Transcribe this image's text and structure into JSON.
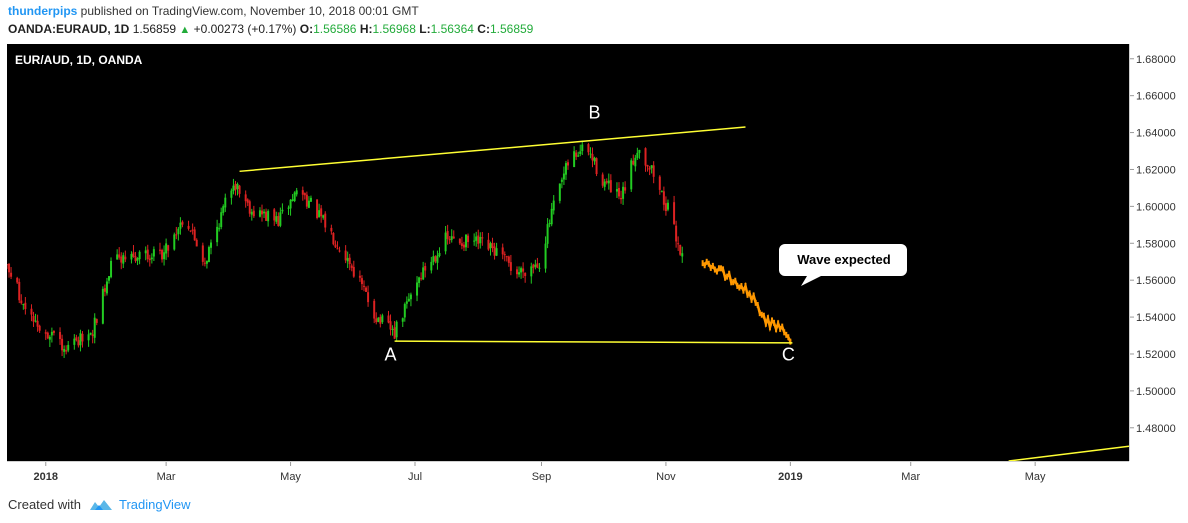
{
  "header": {
    "author": "thunderpips",
    "published": "published on TradingView.com, November 10, 2018 00:01 GMT",
    "symbol": "OANDA:EURAUD, 1D",
    "price": "1.56859",
    "change_arrow": "▲",
    "change": "+0.00273 (+0.17%)",
    "o_label": "O:",
    "o_value": "1.56586",
    "h_label": "H:",
    "h_value": "1.56968",
    "l_label": "L:",
    "l_value": "1.56364",
    "c_label": "C:",
    "c_value": "1.56859"
  },
  "footer": {
    "created_with": "Created with",
    "brand": "TradingView",
    "logo_icon": "tradingview-logo-icon"
  },
  "chart_data": {
    "type": "candlestick",
    "title": "EUR/AUD, 1D, OANDA",
    "background": "#000000",
    "colors": {
      "up": "#22cc22",
      "down": "#dd2222",
      "projection": "#ff9800",
      "trendline": "#ffff33",
      "axis_text": "#333333"
    },
    "y_axis": {
      "side": "right",
      "ylim": [
        1.462,
        1.688
      ],
      "ticks": [
        1.68,
        1.66,
        1.64,
        1.62,
        1.6,
        1.58,
        1.56,
        1.54,
        1.52,
        1.5,
        1.48
      ],
      "tick_labels": [
        "1.68000",
        "1.66000",
        "1.64000",
        "1.62000",
        "1.60000",
        "1.58000",
        "1.56000",
        "1.54000",
        "1.52000",
        "1.50000",
        "1.48000"
      ]
    },
    "x_axis": {
      "range": [
        "2017-12-13",
        "2019-06-16"
      ],
      "ticks": [
        {
          "date": "2018-01-01",
          "label": "2018",
          "bold": true
        },
        {
          "date": "2018-03-01",
          "label": "Mar"
        },
        {
          "date": "2018-05-01",
          "label": "May"
        },
        {
          "date": "2018-07-01",
          "label": "Jul"
        },
        {
          "date": "2018-09-01",
          "label": "Sep"
        },
        {
          "date": "2018-11-01",
          "label": "Nov"
        },
        {
          "date": "2019-01-01",
          "label": "2019",
          "bold": true
        },
        {
          "date": "2019-03-01",
          "label": "Mar"
        },
        {
          "date": "2019-05-01",
          "label": "May"
        }
      ]
    },
    "price_path": [
      {
        "date": "2017-12-13",
        "close": 1.568
      },
      {
        "date": "2017-12-22",
        "close": 1.545
      },
      {
        "date": "2018-01-02",
        "close": 1.53
      },
      {
        "date": "2018-01-12",
        "close": 1.524
      },
      {
        "date": "2018-01-24",
        "close": 1.532
      },
      {
        "date": "2018-02-02",
        "close": 1.57
      },
      {
        "date": "2018-02-15",
        "close": 1.572
      },
      {
        "date": "2018-02-28",
        "close": 1.575
      },
      {
        "date": "2018-03-10",
        "close": 1.595
      },
      {
        "date": "2018-03-20",
        "close": 1.57
      },
      {
        "date": "2018-04-03",
        "close": 1.614
      },
      {
        "date": "2018-04-12",
        "close": 1.598
      },
      {
        "date": "2018-04-25",
        "close": 1.592
      },
      {
        "date": "2018-05-05",
        "close": 1.61
      },
      {
        "date": "2018-05-18",
        "close": 1.59
      },
      {
        "date": "2018-05-30",
        "close": 1.57
      },
      {
        "date": "2018-06-12",
        "close": 1.54
      },
      {
        "date": "2018-06-21",
        "close": 1.531
      },
      {
        "date": "2018-07-02",
        "close": 1.56
      },
      {
        "date": "2018-07-16",
        "close": 1.582
      },
      {
        "date": "2018-08-01",
        "close": 1.58
      },
      {
        "date": "2018-08-10",
        "close": 1.575
      },
      {
        "date": "2018-08-20",
        "close": 1.564
      },
      {
        "date": "2018-08-31",
        "close": 1.57
      },
      {
        "date": "2018-09-07",
        "close": 1.6
      },
      {
        "date": "2018-09-15",
        "close": 1.626
      },
      {
        "date": "2018-09-23",
        "close": 1.632
      },
      {
        "date": "2018-10-01",
        "close": 1.614
      },
      {
        "date": "2018-10-10",
        "close": 1.603
      },
      {
        "date": "2018-10-18",
        "close": 1.632
      },
      {
        "date": "2018-10-25",
        "close": 1.62
      },
      {
        "date": "2018-11-02",
        "close": 1.598
      },
      {
        "date": "2018-11-10",
        "close": 1.569
      }
    ],
    "projection": {
      "label": "Wave expected",
      "path": [
        {
          "date": "2018-11-19",
          "close": 1.571
        },
        {
          "date": "2018-12-01",
          "close": 1.562
        },
        {
          "date": "2018-12-12",
          "close": 1.553
        },
        {
          "date": "2018-12-21",
          "close": 1.537
        },
        {
          "date": "2018-12-30",
          "close": 1.532
        },
        {
          "date": "2019-01-01",
          "close": 1.527
        }
      ]
    },
    "trendlines": [
      {
        "from": {
          "date": "2018-04-06",
          "price": 1.619
        },
        "to": {
          "date": "2018-12-10",
          "price": 1.643
        }
      },
      {
        "from": {
          "date": "2018-06-21",
          "price": 1.527
        },
        "to": {
          "date": "2019-01-02",
          "price": 1.526
        }
      },
      {
        "from": {
          "date": "2019-04-18",
          "price": 1.462
        },
        "to": {
          "date": "2019-06-16",
          "price": 1.47
        }
      }
    ],
    "wave_labels": [
      {
        "text": "A",
        "date": "2018-06-19",
        "price": 1.5165
      },
      {
        "text": "B",
        "date": "2018-09-27",
        "price": 1.6475
      },
      {
        "text": "C",
        "date": "2018-12-31",
        "price": 1.5165
      }
    ]
  }
}
